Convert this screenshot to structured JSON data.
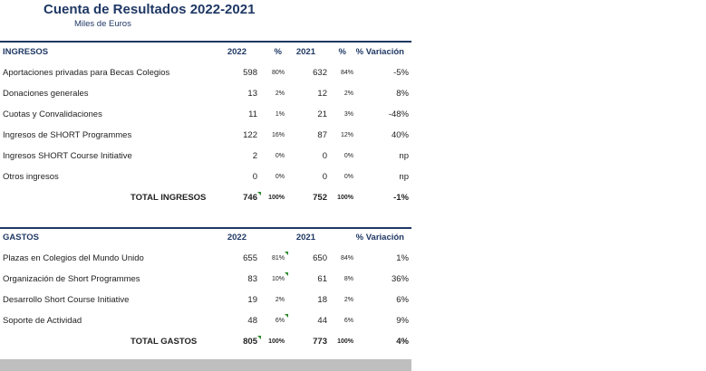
{
  "title": "Cuenta de Resultados 2022-2021",
  "subtitle": "Miles de Euros",
  "ingresos": {
    "header": {
      "label": "INGRESOS",
      "y2022": "2022",
      "pct1": "%",
      "y2021": "2021",
      "pct2": "%",
      "variacion": "% Variación"
    },
    "rows": [
      {
        "label": "Aportaciones privadas para Becas Colegios",
        "v2022": "598",
        "p2022": "80%",
        "v2021": "632",
        "p2021": "84%",
        "var": "-5%"
      },
      {
        "label": "Donaciones generales",
        "v2022": "13",
        "p2022": "2%",
        "v2021": "12",
        "p2021": "2%",
        "var": "8%"
      },
      {
        "label": "Cuotas y Convalidaciones",
        "v2022": "11",
        "p2022": "1%",
        "v2021": "21",
        "p2021": "3%",
        "var": "-48%"
      },
      {
        "label": "Ingresos de SHORT Programmes",
        "v2022": "122",
        "p2022": "16%",
        "v2021": "87",
        "p2021": "12%",
        "var": "40%"
      },
      {
        "label": "Ingresos SHORT Course Initiative",
        "v2022": "2",
        "p2022": "0%",
        "v2021": "0",
        "p2021": "0%",
        "var": "np"
      },
      {
        "label": "Otros ingresos",
        "v2022": "0",
        "p2022": "0%",
        "v2021": "0",
        "p2021": "0%",
        "var": "np"
      }
    ],
    "total": {
      "label": "TOTAL INGRESOS",
      "v2022": "746",
      "p2022": "100%",
      "v2021": "752",
      "p2021": "100%",
      "var": "-1%"
    }
  },
  "gastos": {
    "header": {
      "label": "GASTOS",
      "y2022": "2022",
      "y2021": "2021",
      "variacion": "% Variación"
    },
    "rows": [
      {
        "label": "Plazas en Colegios del Mundo Unido",
        "v2022": "655",
        "p2022": "81%",
        "v2021": "650",
        "p2021": "84%",
        "var": "1%"
      },
      {
        "label": "Organización de Short Programmes",
        "v2022": "83",
        "p2022": "10%",
        "v2021": "61",
        "p2021": "8%",
        "var": "36%"
      },
      {
        "label": "Desarrollo Short Course Initiative",
        "v2022": "19",
        "p2022": "2%",
        "v2021": "18",
        "p2021": "2%",
        "var": "6%"
      },
      {
        "label": "Soporte de Actividad",
        "v2022": "48",
        "p2022": "6%",
        "v2021": "44",
        "p2021": "6%",
        "var": "9%"
      }
    ],
    "total": {
      "label": "TOTAL GASTOS",
      "v2022": "805",
      "p2022": "100%",
      "v2021": "773",
      "p2021": "100%",
      "var": "4%"
    }
  }
}
